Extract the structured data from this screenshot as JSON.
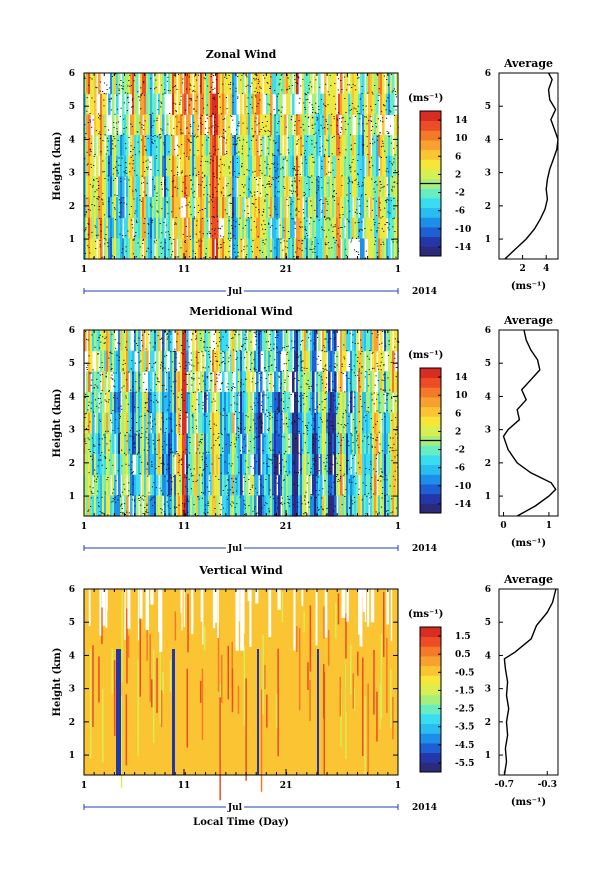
{
  "colors": {
    "jet": [
      "#2c2a7a",
      "#2437a8",
      "#1f5fd4",
      "#1e8fe8",
      "#29bdf0",
      "#39dcf0",
      "#67ecc4",
      "#a6f07a",
      "#d8ee52",
      "#f6e63a",
      "#fbc432",
      "#f8a030",
      "#f47a2a",
      "#ec4d27",
      "#d92c22"
    ],
    "vertical_bg": "#fbc433"
  },
  "chart_data": [
    {
      "type": "heatmap",
      "title": "Zonal Wind",
      "ylabel": "Height (km)",
      "yticks": [
        "1",
        "2",
        "3",
        "4",
        "5",
        "6"
      ],
      "ylim": [
        0.4,
        6
      ],
      "xticks": [
        "1",
        "11",
        "21",
        "1"
      ],
      "month_label": "Jul",
      "year_label": "2014",
      "xlabel": "",
      "colorbar": {
        "unit": "(ms⁻¹)",
        "ticks": [
          "14",
          "10",
          "6",
          "2",
          "-2",
          "-6",
          "-10",
          "-14"
        ],
        "range": [
          -16,
          16
        ]
      },
      "profile": {
        "title": "Average",
        "xlabel": "(ms⁻¹)",
        "xticks": [
          "2",
          "4"
        ],
        "xlim": [
          0,
          5
        ],
        "height": [
          0.4,
          0.7,
          1.0,
          1.3,
          1.6,
          1.9,
          2.2,
          2.5,
          2.8,
          3.1,
          3.4,
          3.7,
          4.0,
          4.3,
          4.6,
          4.9,
          5.2,
          5.5,
          5.8,
          6.0
        ],
        "value": [
          0.5,
          1.4,
          2.3,
          3.0,
          3.5,
          3.9,
          4.1,
          4.0,
          4.1,
          4.3,
          4.6,
          4.9,
          5.0,
          4.7,
          4.4,
          4.8,
          4.3,
          4.2,
          4.5,
          4.2
        ]
      }
    },
    {
      "type": "heatmap",
      "title": "Meridional Wind",
      "ylabel": "Height (km)",
      "yticks": [
        "1",
        "2",
        "3",
        "4",
        "5",
        "6"
      ],
      "ylim": [
        0.4,
        6
      ],
      "xticks": [
        "1",
        "11",
        "21",
        "1"
      ],
      "month_label": "Jul",
      "year_label": "2014",
      "xlabel": "",
      "colorbar": {
        "unit": "(ms⁻¹)",
        "ticks": [
          "14",
          "10",
          "6",
          "2",
          "-2",
          "-6",
          "-10",
          "-14"
        ],
        "range": [
          -16,
          16
        ]
      },
      "profile": {
        "title": "Average",
        "xlabel": "(ms⁻¹)",
        "xticks": [
          "0",
          "1"
        ],
        "xlim": [
          -0.1,
          1.2
        ],
        "height": [
          0.4,
          0.7,
          1.0,
          1.2,
          1.4,
          1.7,
          2.0,
          2.4,
          2.8,
          3.0,
          3.3,
          3.6,
          3.9,
          4.2,
          4.5,
          4.8,
          5.1,
          5.4,
          5.7,
          6.0
        ],
        "value": [
          0.3,
          0.7,
          1.0,
          1.15,
          1.05,
          0.6,
          0.3,
          0.1,
          0.0,
          0.1,
          0.35,
          0.3,
          0.5,
          0.4,
          0.6,
          0.8,
          0.75,
          0.6,
          0.5,
          0.45
        ]
      }
    },
    {
      "type": "heatmap",
      "title": "Vertical Wind",
      "ylabel": "Height (km)",
      "yticks": [
        "1",
        "2",
        "3",
        "4",
        "5",
        "6"
      ],
      "ylim": [
        0.4,
        6
      ],
      "xticks": [
        "1",
        "11",
        "21",
        "1"
      ],
      "month_label": "Jul",
      "year_label": "2014",
      "xlabel": "Local Time (Day)",
      "colorbar": {
        "unit": "(ms⁻¹)",
        "ticks": [
          "1.5",
          "0.5",
          "-0.5",
          "-1.5",
          "-2.5",
          "-3.5",
          "-4.5",
          "-5.5"
        ],
        "range": [
          -6,
          2
        ]
      },
      "profile": {
        "title": "Average",
        "xlabel": "(ms⁻¹)",
        "xticks": [
          "-0.7",
          "-0.3"
        ],
        "xlim": [
          -0.75,
          -0.2
        ],
        "height": [
          0.4,
          0.8,
          1.2,
          1.6,
          2.0,
          2.4,
          2.8,
          3.2,
          3.6,
          3.9,
          4.1,
          4.5,
          4.9,
          5.3,
          5.6,
          6.0
        ],
        "value": [
          -0.7,
          -0.68,
          -0.69,
          -0.67,
          -0.68,
          -0.66,
          -0.68,
          -0.67,
          -0.69,
          -0.7,
          -0.6,
          -0.45,
          -0.4,
          -0.3,
          -0.25,
          -0.22
        ]
      }
    }
  ]
}
